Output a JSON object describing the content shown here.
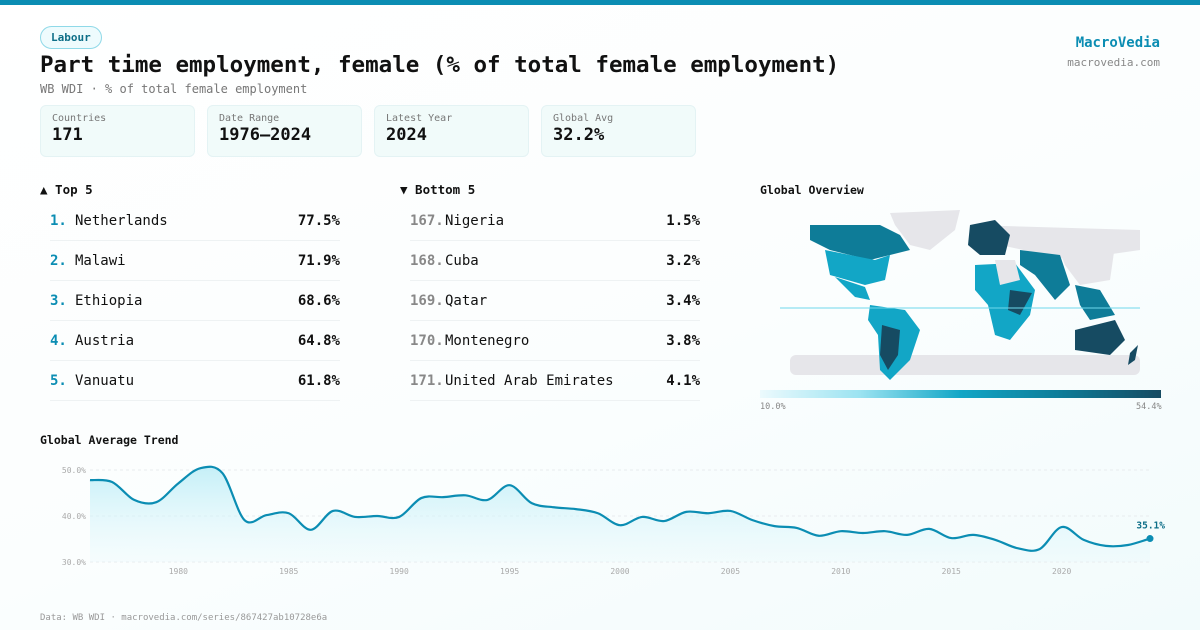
{
  "tag": "Labour",
  "title": "Part time employment, female (% of total female employment)",
  "subtitle": "WB WDI · % of total female employment",
  "brand": {
    "name": "MacroVedia",
    "url": "macrovedia.com"
  },
  "stats": [
    {
      "label": "Countries",
      "value": "171"
    },
    {
      "label": "Date Range",
      "value": "1976–2024"
    },
    {
      "label": "Latest Year",
      "value": "2024"
    },
    {
      "label": "Global Avg",
      "value": "32.2%"
    }
  ],
  "top5": {
    "title": "▲ Top 5",
    "items": [
      {
        "rank": "1.",
        "name": "Netherlands",
        "value": "77.5%"
      },
      {
        "rank": "2.",
        "name": "Malawi",
        "value": "71.9%"
      },
      {
        "rank": "3.",
        "name": "Ethiopia",
        "value": "68.6%"
      },
      {
        "rank": "4.",
        "name": "Austria",
        "value": "64.8%"
      },
      {
        "rank": "5.",
        "name": "Vanuatu",
        "value": "61.8%"
      }
    ]
  },
  "bottom5": {
    "title": "▼ Bottom 5",
    "items": [
      {
        "rank": "167.",
        "name": "Nigeria",
        "value": "1.5%"
      },
      {
        "rank": "168.",
        "name": "Cuba",
        "value": "3.2%"
      },
      {
        "rank": "169.",
        "name": "Qatar",
        "value": "3.4%"
      },
      {
        "rank": "170.",
        "name": "Montenegro",
        "value": "3.8%"
      },
      {
        "rank": "171.",
        "name": "United Arab Emirates",
        "value": "4.1%"
      }
    ]
  },
  "map": {
    "title": "Global Overview",
    "legend_min": "10.0%",
    "legend_max": "54.4%",
    "colors": [
      "#ecfafd",
      "#9be3f1",
      "#12a6c6",
      "#0e7c98",
      "#164b62"
    ],
    "no_data_color": "#e6e6ea"
  },
  "chart_data": {
    "type": "area",
    "title": "Global Average Trend",
    "x": [
      1976,
      1977,
      1978,
      1979,
      1980,
      1981,
      1982,
      1983,
      1984,
      1985,
      1986,
      1987,
      1988,
      1989,
      1990,
      1991,
      1992,
      1993,
      1994,
      1995,
      1996,
      1997,
      1998,
      1999,
      2000,
      2001,
      2002,
      2003,
      2004,
      2005,
      2006,
      2007,
      2008,
      2009,
      2010,
      2011,
      2012,
      2013,
      2014,
      2015,
      2016,
      2017,
      2018,
      2019,
      2020,
      2021,
      2022,
      2023,
      2024
    ],
    "y": [
      47.8,
      47.4,
      43.5,
      43.0,
      47.1,
      50.4,
      49.3,
      39.1,
      40.2,
      40.6,
      37.0,
      41.1,
      39.8,
      40.0,
      39.8,
      43.9,
      44.1,
      44.5,
      43.5,
      46.7,
      42.8,
      41.9,
      41.5,
      40.6,
      38.0,
      39.8,
      38.9,
      40.9,
      40.6,
      41.1,
      39.1,
      37.8,
      37.4,
      35.7,
      36.7,
      36.3,
      36.7,
      35.9,
      37.2,
      35.2,
      35.9,
      34.8,
      33.0,
      32.8,
      37.6,
      34.8,
      33.5,
      33.7,
      35.1
    ],
    "ylim": [
      30,
      50
    ],
    "yticks": [
      "30.0%",
      "40.0%",
      "50.0%"
    ],
    "xticks": [
      "1980",
      "1985",
      "1990",
      "1995",
      "2000",
      "2005",
      "2010",
      "2015",
      "2020"
    ],
    "last_label": "35.1%",
    "color": "#0b8db3",
    "grid": true
  },
  "footer": "Data: WB WDI · macrovedia.com/series/867427ab10728e6a"
}
